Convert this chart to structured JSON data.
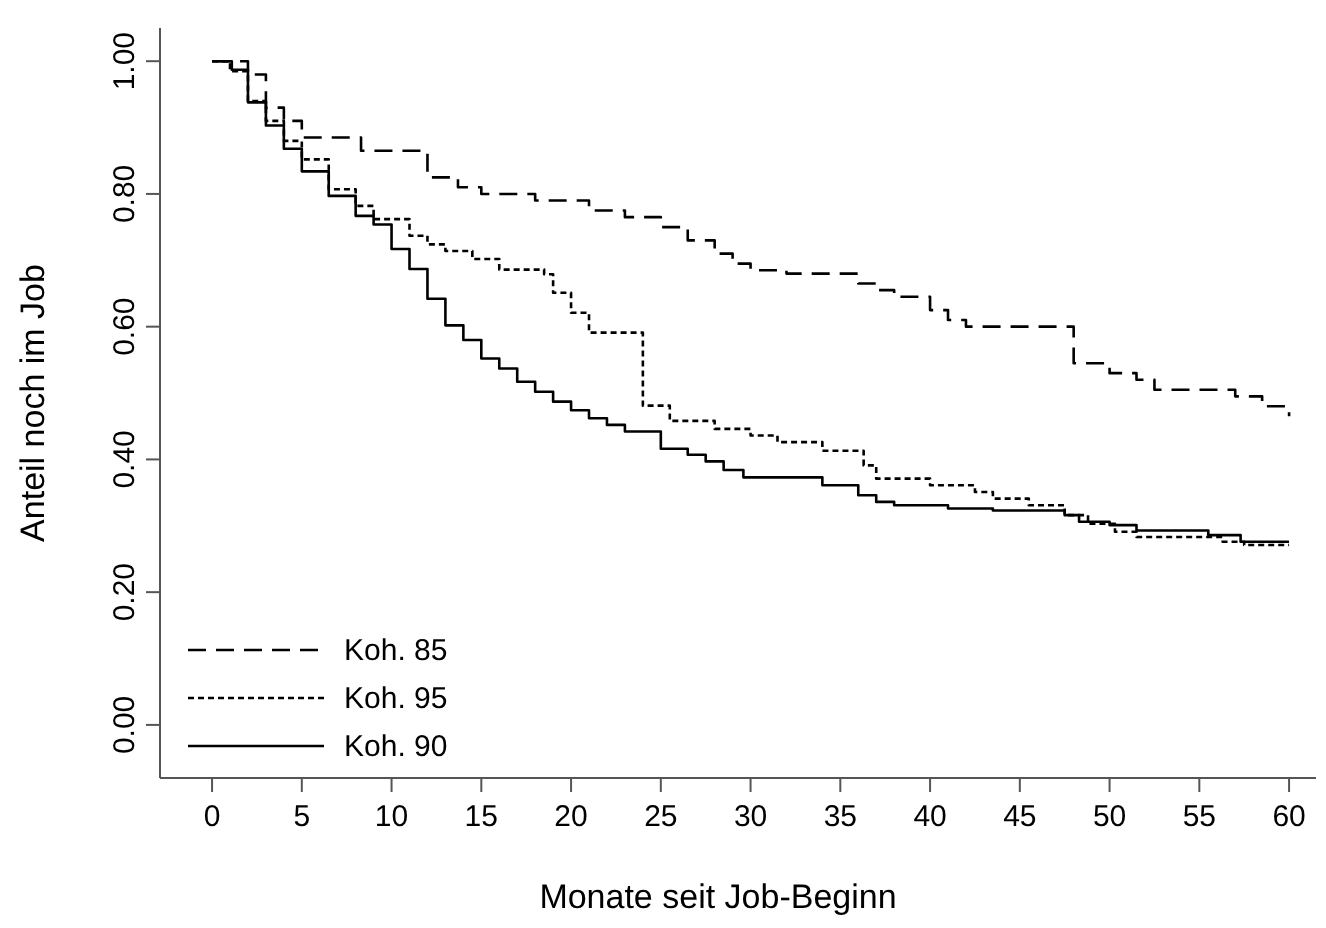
{
  "chart_data": {
    "type": "step",
    "xlabel": "Monate seit Job-Beginn",
    "ylabel": "Anteil noch im Job",
    "xlim": [
      -2.9,
      61.5
    ],
    "ylim": [
      -0.08,
      1.05
    ],
    "xticks": [
      0,
      5,
      10,
      15,
      20,
      25,
      30,
      35,
      40,
      45,
      50,
      55,
      60
    ],
    "yticks": [
      {
        "value": 0,
        "label": "0.00"
      },
      {
        "value": 0.2,
        "label": "0.20"
      },
      {
        "value": 0.4,
        "label": "0.40"
      },
      {
        "value": 0.6,
        "label": "0.60"
      },
      {
        "value": 0.8,
        "label": "0.80"
      },
      {
        "value": 1,
        "label": "1.00"
      }
    ],
    "grid": false,
    "legend": "bottom left",
    "marker": "none",
    "series": [
      {
        "name": "Koh. 85",
        "color": "#000000",
        "line_style": "dashed",
        "x": [
          0,
          2,
          3,
          4,
          5,
          8.3,
          12,
          13.7,
          15,
          18,
          21,
          23,
          25,
          26.5,
          28,
          29,
          30,
          32,
          36,
          37,
          38,
          40,
          41,
          42,
          48,
          50,
          51.5,
          52.5,
          57,
          58.5,
          60
        ],
        "values": [
          1.0,
          0.98,
          0.93,
          0.91,
          0.885,
          0.865,
          0.825,
          0.81,
          0.8,
          0.79,
          0.775,
          0.765,
          0.75,
          0.73,
          0.71,
          0.695,
          0.685,
          0.68,
          0.665,
          0.655,
          0.645,
          0.625,
          0.61,
          0.6,
          0.545,
          0.53,
          0.52,
          0.505,
          0.495,
          0.48,
          0.465
        ]
      },
      {
        "name": "Koh. 95",
        "color": "#000000",
        "line_style": "dotted",
        "x": [
          0,
          1,
          2,
          3,
          4,
          5,
          6.5,
          8,
          9,
          11,
          12,
          13,
          14.5,
          16,
          18.5,
          19,
          20,
          21,
          24,
          25.5,
          28,
          30,
          31.5,
          34,
          36.3,
          37,
          40,
          42.5,
          43.5,
          45.5,
          47.5,
          48.8,
          50.3,
          51.5,
          56.3,
          57.5,
          60
        ],
        "values": [
          1.0,
          0.985,
          0.94,
          0.91,
          0.88,
          0.852,
          0.807,
          0.782,
          0.762,
          0.737,
          0.724,
          0.714,
          0.702,
          0.686,
          0.679,
          0.651,
          0.621,
          0.591,
          0.481,
          0.458,
          0.446,
          0.436,
          0.426,
          0.413,
          0.391,
          0.371,
          0.361,
          0.351,
          0.341,
          0.331,
          0.316,
          0.303,
          0.291,
          0.283,
          0.276,
          0.271,
          0.271
        ]
      },
      {
        "name": "Koh. 90",
        "color": "#000000",
        "line_style": "solid",
        "x": [
          0,
          1.1,
          2,
          3,
          4,
          5,
          6.5,
          8,
          9,
          10,
          11,
          12,
          13,
          14,
          15,
          16,
          17,
          18,
          19,
          20,
          21,
          22,
          23,
          25,
          26.5,
          27.5,
          28.5,
          29.6,
          34,
          36,
          37,
          38,
          41,
          43.5,
          47.5,
          48.3,
          50,
          51.5,
          55.5,
          57.3,
          60
        ],
        "values": [
          1.0,
          0.987,
          0.938,
          0.903,
          0.868,
          0.834,
          0.797,
          0.767,
          0.754,
          0.717,
          0.687,
          0.642,
          0.602,
          0.58,
          0.552,
          0.537,
          0.517,
          0.502,
          0.487,
          0.474,
          0.462,
          0.452,
          0.442,
          0.416,
          0.407,
          0.397,
          0.384,
          0.373,
          0.361,
          0.346,
          0.336,
          0.331,
          0.326,
          0.323,
          0.316,
          0.306,
          0.301,
          0.293,
          0.286,
          0.276,
          0.276
        ]
      }
    ]
  }
}
